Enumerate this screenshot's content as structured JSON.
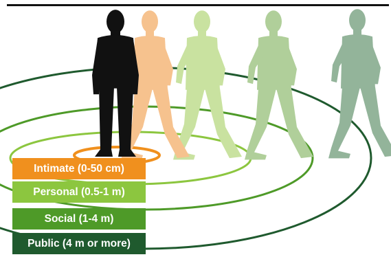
{
  "zones": [
    {
      "label": "Intimate (0-50 cm)",
      "color": "#f0901e"
    },
    {
      "label": "Personal (0.5-1 m)",
      "color": "#8cc63f"
    },
    {
      "label": "Social (1-4 m)",
      "color": "#4e9a28"
    },
    {
      "label": "Public (4 m or more)",
      "color": "#1f5a2e"
    }
  ],
  "figures": [
    {
      "name": "person-black",
      "color": "#111111"
    },
    {
      "name": "person-orange",
      "color": "#f6c28e"
    },
    {
      "name": "person-light-green",
      "color": "#c9e2a0"
    },
    {
      "name": "person-green",
      "color": "#b0cf9a"
    },
    {
      "name": "person-grey-green",
      "color": "#93b49a"
    }
  ]
}
